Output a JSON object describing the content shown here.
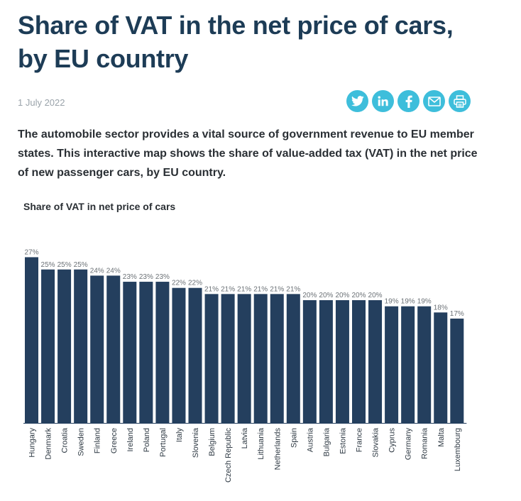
{
  "header": {
    "title": "Share of VAT in the net price of cars, by EU country",
    "date": "1 July 2022"
  },
  "share": [
    {
      "icon": "twitter-icon"
    },
    {
      "icon": "linkedin-icon"
    },
    {
      "icon": "facebook-icon"
    },
    {
      "icon": "email-icon"
    },
    {
      "icon": "print-icon"
    }
  ],
  "intro": "The automobile sector provides a vital source of government revenue to EU member states. This interactive map shows the share of value-added tax (VAT) in the net price of new passenger cars, by EU country.",
  "colors": {
    "accent": "#3ebedb",
    "bar": "#243f5e",
    "title": "#1d3c56"
  },
  "chart_data": {
    "type": "bar",
    "title": "Share of VAT in net price of cars",
    "categories": [
      "Hungary",
      "Denmark",
      "Croatia",
      "Sweden",
      "Finland",
      "Greece",
      "Ireland",
      "Poland",
      "Portugal",
      "Italy",
      "Slovenia",
      "Belgium",
      "Czech Republic",
      "Latvia",
      "Lithuania",
      "Netherlands",
      "Spain",
      "Austria",
      "Bulgaria",
      "Estonia",
      "France",
      "Slovakia",
      "Cyprus",
      "Germany",
      "Romania",
      "Malta",
      "Luxembourg"
    ],
    "values": [
      27,
      25,
      25,
      25,
      24,
      24,
      23,
      23,
      23,
      22,
      22,
      21,
      21,
      21,
      21,
      21,
      21,
      20,
      20,
      20,
      20,
      20,
      19,
      19,
      19,
      18,
      17
    ],
    "value_suffix": "%",
    "ylim": [
      0,
      28
    ],
    "grid": false
  }
}
